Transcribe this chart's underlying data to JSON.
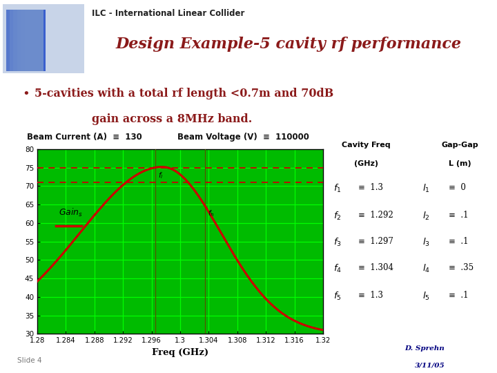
{
  "title": "Design Example-5 cavity rf performance",
  "header": "ILC - International Linear Collider",
  "bullet_line1": "5-cavities with a total rf length <0.7m and 70dB",
  "bullet_line2": "gain across a 8MHz band.",
  "beam_current_val": 130,
  "beam_voltage_val": 110000,
  "xlabel": "Freq (GHz)",
  "xmin": 1.28,
  "xmax": 1.32,
  "ymin": 30,
  "ymax": 80,
  "xticks": [
    1.28,
    1.284,
    1.288,
    1.292,
    1.296,
    1.3,
    1.304,
    1.308,
    1.312,
    1.316,
    1.32
  ],
  "yticks": [
    30,
    35,
    40,
    45,
    50,
    55,
    60,
    65,
    70,
    75,
    80
  ],
  "hline1_y": 75,
  "hline2_y": 71,
  "vline1_x": 1.2965,
  "vline2_x": 1.3035,
  "bg_color": "#ffffff",
  "plot_bg": "#00bb00",
  "grid_color": "#00ff00",
  "curve_color": "#cc0000",
  "dashed_line_color": "#cc0000",
  "header_color": "#222222",
  "title_color": "#8b1a1a",
  "bullet_color": "#8b1a1a",
  "slide_label": "Slide 4",
  "author": "D. Sprehn",
  "date": "3/11/05",
  "cavity_freqs": [
    "1.3",
    "1.292",
    "1.297",
    "1.304",
    "1.3"
  ],
  "gap_lengths": [
    "0",
    ".1",
    ".1",
    ".35",
    ".1"
  ],
  "accent_bar_color": "#7b2020",
  "logo_bg": "#c8d4e8",
  "logo_blue": "#3a5fcd"
}
